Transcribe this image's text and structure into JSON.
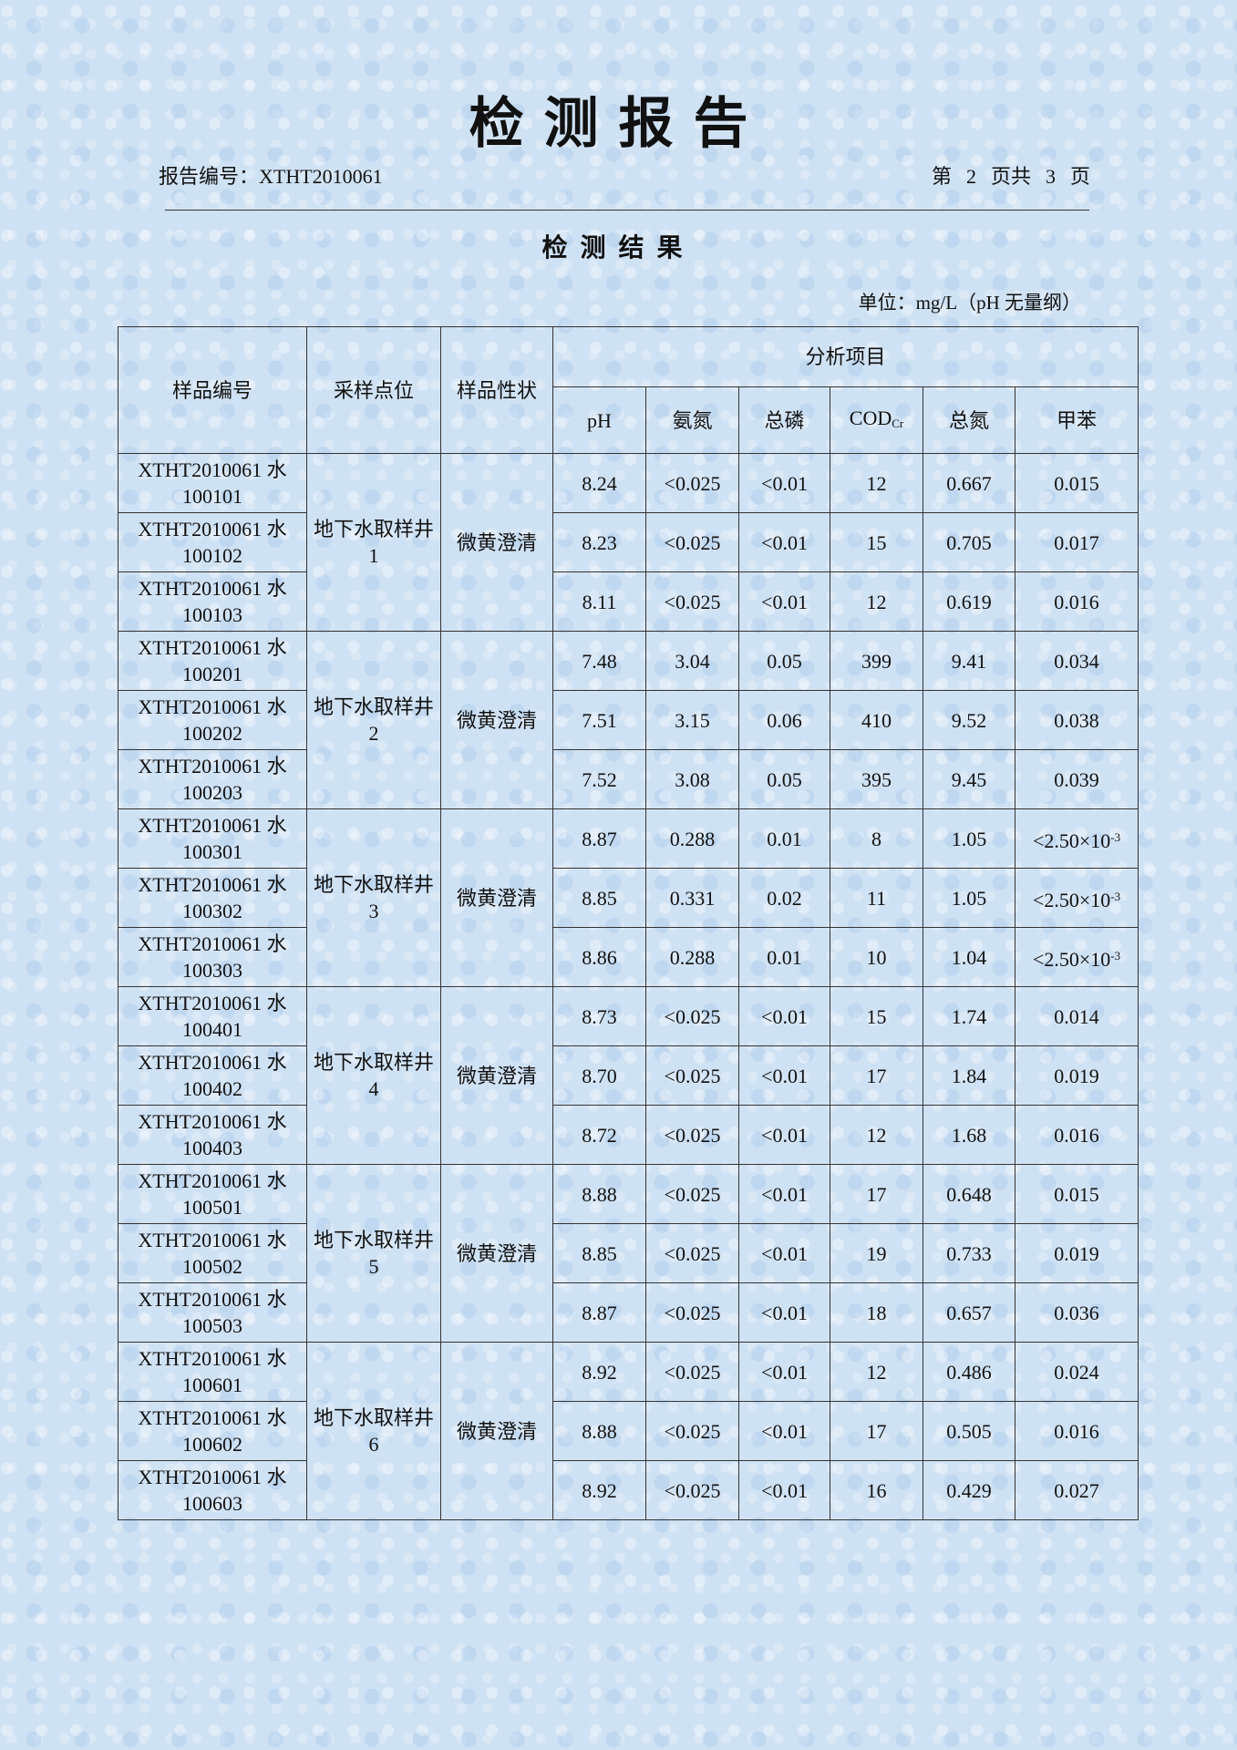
{
  "header": {
    "title": "检测报告",
    "report_no_label": "报告编号：",
    "report_no": "XTHT2010061",
    "page_prefix": "第",
    "page_current": "2",
    "page_mid": "页共",
    "page_total": "3",
    "page_suffix": "页"
  },
  "section_title": "检测结果",
  "unit": "单位：mg/L（pH 无量纲）",
  "table": {
    "columns": {
      "sample_no": "样品编号",
      "location": "采样点位",
      "appearance": "样品性状",
      "analysis_group": "分析项目",
      "ph": "pH",
      "ammonia": "氨氮",
      "total_p": "总磷",
      "cod": "COD",
      "cod_sub": "Cr",
      "total_n": "总氮",
      "toluene": "甲苯"
    },
    "groups": [
      {
        "location": "地下水取样井 1",
        "appearance": "微黄澄清",
        "rows": [
          {
            "id": "XTHT2010061 水 100101",
            "ph": "8.24",
            "ammonia": "<0.025",
            "total_p": "<0.01",
            "cod": "12",
            "total_n": "0.667",
            "toluene": "0.015"
          },
          {
            "id": "XTHT2010061 水 100102",
            "ph": "8.23",
            "ammonia": "<0.025",
            "total_p": "<0.01",
            "cod": "15",
            "total_n": "0.705",
            "toluene": "0.017"
          },
          {
            "id": "XTHT2010061 水 100103",
            "ph": "8.11",
            "ammonia": "<0.025",
            "total_p": "<0.01",
            "cod": "12",
            "total_n": "0.619",
            "toluene": "0.016"
          }
        ]
      },
      {
        "location": "地下水取样井 2",
        "appearance": "微黄澄清",
        "rows": [
          {
            "id": "XTHT2010061 水 100201",
            "ph": "7.48",
            "ammonia": "3.04",
            "total_p": "0.05",
            "cod": "399",
            "total_n": "9.41",
            "toluene": "0.034"
          },
          {
            "id": "XTHT2010061 水 100202",
            "ph": "7.51",
            "ammonia": "3.15",
            "total_p": "0.06",
            "cod": "410",
            "total_n": "9.52",
            "toluene": "0.038"
          },
          {
            "id": "XTHT2010061 水 100203",
            "ph": "7.52",
            "ammonia": "3.08",
            "total_p": "0.05",
            "cod": "395",
            "total_n": "9.45",
            "toluene": "0.039"
          }
        ]
      },
      {
        "location": "地下水取样井 3",
        "appearance": "微黄澄清",
        "rows": [
          {
            "id": "XTHT2010061 水 100301",
            "ph": "8.87",
            "ammonia": "0.288",
            "total_p": "0.01",
            "cod": "8",
            "total_n": "1.05",
            "toluene": "<2.50×10",
            "toluene_exp": "-3"
          },
          {
            "id": "XTHT2010061 水 100302",
            "ph": "8.85",
            "ammonia": "0.331",
            "total_p": "0.02",
            "cod": "11",
            "total_n": "1.05",
            "toluene": "<2.50×10",
            "toluene_exp": "-3"
          },
          {
            "id": "XTHT2010061 水 100303",
            "ph": "8.86",
            "ammonia": "0.288",
            "total_p": "0.01",
            "cod": "10",
            "total_n": "1.04",
            "toluene": "<2.50×10",
            "toluene_exp": "-3"
          }
        ]
      },
      {
        "location": "地下水取样井 4",
        "appearance": "微黄澄清",
        "rows": [
          {
            "id": "XTHT2010061 水 100401",
            "ph": "8.73",
            "ammonia": "<0.025",
            "total_p": "<0.01",
            "cod": "15",
            "total_n": "1.74",
            "toluene": "0.014"
          },
          {
            "id": "XTHT2010061 水 100402",
            "ph": "8.70",
            "ammonia": "<0.025",
            "total_p": "<0.01",
            "cod": "17",
            "total_n": "1.84",
            "toluene": "0.019"
          },
          {
            "id": "XTHT2010061 水 100403",
            "ph": "8.72",
            "ammonia": "<0.025",
            "total_p": "<0.01",
            "cod": "12",
            "total_n": "1.68",
            "toluene": "0.016"
          }
        ]
      },
      {
        "location": "地下水取样井 5",
        "appearance": "微黄澄清",
        "rows": [
          {
            "id": "XTHT2010061 水 100501",
            "ph": "8.88",
            "ammonia": "<0.025",
            "total_p": "<0.01",
            "cod": "17",
            "total_n": "0.648",
            "toluene": "0.015"
          },
          {
            "id": "XTHT2010061 水 100502",
            "ph": "8.85",
            "ammonia": "<0.025",
            "total_p": "<0.01",
            "cod": "19",
            "total_n": "0.733",
            "toluene": "0.019"
          },
          {
            "id": "XTHT2010061 水 100503",
            "ph": "8.87",
            "ammonia": "<0.025",
            "total_p": "<0.01",
            "cod": "18",
            "total_n": "0.657",
            "toluene": "0.036"
          }
        ]
      },
      {
        "location": "地下水取样井 6",
        "appearance": "微黄澄清",
        "rows": [
          {
            "id": "XTHT2010061 水 100601",
            "ph": "8.92",
            "ammonia": "<0.025",
            "total_p": "<0.01",
            "cod": "12",
            "total_n": "0.486",
            "toluene": "0.024"
          },
          {
            "id": "XTHT2010061 水 100602",
            "ph": "8.88",
            "ammonia": "<0.025",
            "total_p": "<0.01",
            "cod": "17",
            "total_n": "0.505",
            "toluene": "0.016"
          },
          {
            "id": "XTHT2010061 水 100603",
            "ph": "8.92",
            "ammonia": "<0.025",
            "total_p": "<0.01",
            "cod": "16",
            "total_n": "0.429",
            "toluene": "0.027"
          }
        ]
      }
    ]
  }
}
